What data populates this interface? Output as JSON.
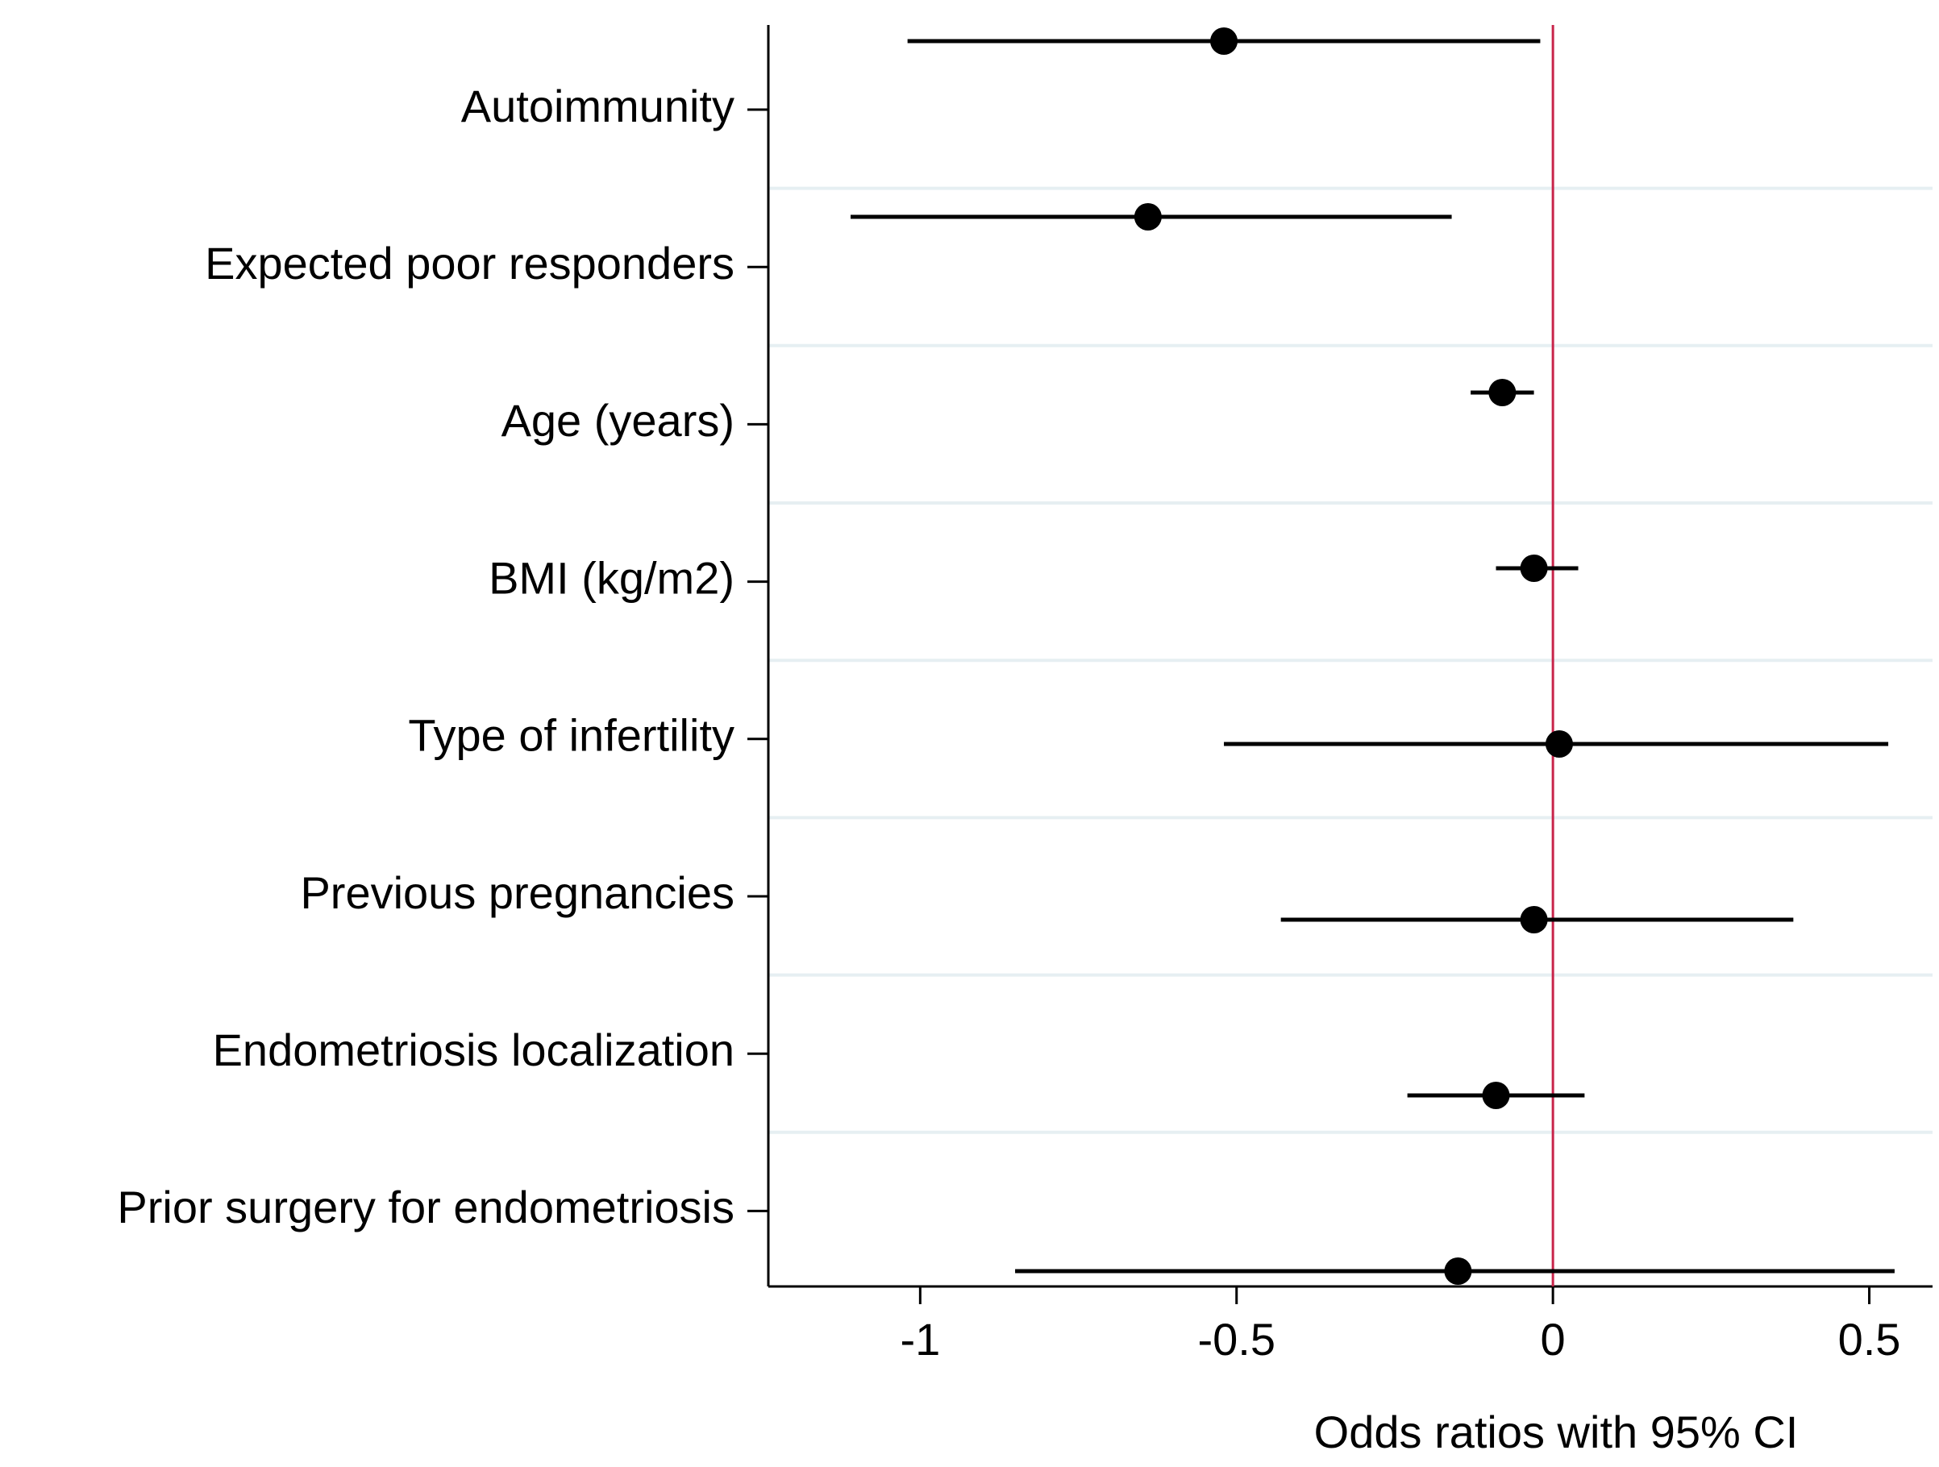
{
  "chart_data": {
    "type": "forest",
    "xlabel": "Odds ratios with 95% CI",
    "categories": [
      "Autoimmunity",
      "Expected poor responders",
      "Age (years)",
      "BMI (kg/m2)",
      "Type of infertility",
      "Previous pregnancies",
      "Endometriosis localization",
      "Prior surgery for endometriosis"
    ],
    "values": [
      -0.52,
      -0.64,
      -0.08,
      -0.03,
      0.01,
      -0.03,
      -0.09,
      -0.15
    ],
    "lower": [
      -1.02,
      -1.11,
      -0.13,
      -0.09,
      -0.52,
      -0.43,
      -0.23,
      -0.85
    ],
    "upper": [
      -0.02,
      -0.16,
      -0.03,
      0.04,
      0.53,
      0.38,
      0.05,
      0.54
    ],
    "color": "#000000",
    "reference_line": 0,
    "reference_color": "#c8244a",
    "grid": true,
    "grid_color": "#e6eff2",
    "xlim": [
      -1.24,
      0.6
    ],
    "xticks": [
      -1,
      -0.5,
      0,
      0.5
    ]
  }
}
